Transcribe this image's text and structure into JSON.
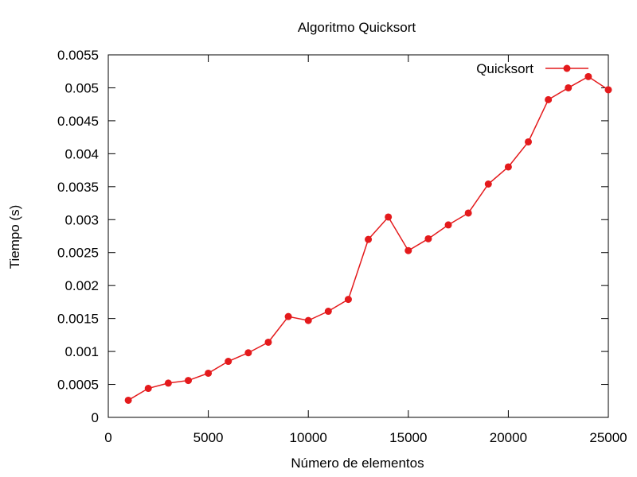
{
  "chart_data": {
    "type": "line",
    "title": "Algoritmo Quicksort",
    "xlabel": "Número de elementos",
    "ylabel": "Tiempo (s)",
    "xlim": [
      0,
      25000
    ],
    "ylim": [
      0,
      0.0055
    ],
    "x_ticks": [
      0,
      5000,
      10000,
      15000,
      20000,
      25000
    ],
    "x_tick_labels": [
      "0",
      "5000",
      "10000",
      "15000",
      "20000",
      "25000"
    ],
    "y_ticks": [
      0,
      0.0005,
      0.001,
      0.0015,
      0.002,
      0.0025,
      0.003,
      0.0035,
      0.004,
      0.0045,
      0.005,
      0.0055
    ],
    "y_tick_labels": [
      "0",
      "0.0005",
      "0.001",
      "0.0015",
      "0.002",
      "0.0025",
      "0.003",
      "0.0035",
      "0.004",
      "0.0045",
      "0.005",
      "0.0055"
    ],
    "grid": false,
    "legend": "top-right",
    "series": [
      {
        "name": "Quicksort",
        "color": "#e41a1c",
        "marker": "circle",
        "x": [
          1000,
          2000,
          3000,
          4000,
          5000,
          6000,
          7000,
          8000,
          9000,
          10000,
          11000,
          12000,
          13000,
          14000,
          15000,
          16000,
          17000,
          18000,
          19000,
          20000,
          21000,
          22000,
          23000,
          24000,
          25000
        ],
        "y": [
          0.00026,
          0.00044,
          0.00052,
          0.00056,
          0.00067,
          0.00085,
          0.00098,
          0.00114,
          0.00153,
          0.00147,
          0.00161,
          0.00179,
          0.0027,
          0.00304,
          0.00253,
          0.00271,
          0.00292,
          0.0031,
          0.00354,
          0.0038,
          0.00418,
          0.00482,
          0.005,
          0.00517,
          0.00497
        ]
      }
    ]
  }
}
